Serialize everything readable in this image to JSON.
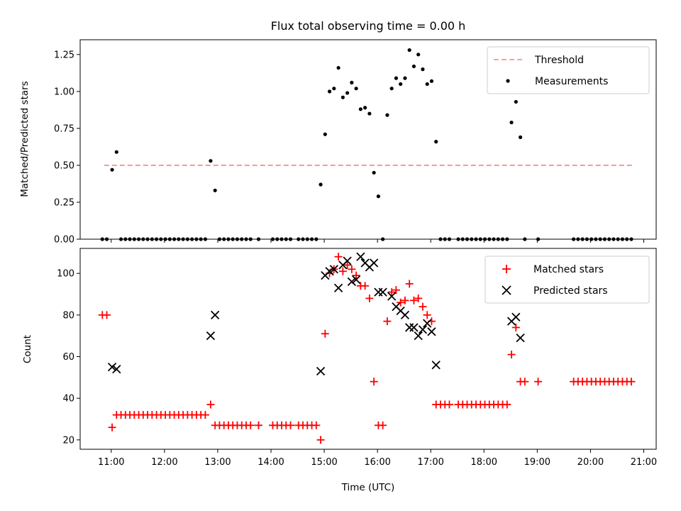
{
  "chart_data": [
    {
      "type": "scatter",
      "title": "Flux total observing time = 0.00 h",
      "xlabel": "",
      "ylabel": "Matched/Predicted stars",
      "xlim": [
        "10:25",
        "21:14"
      ],
      "ylim": [
        0,
        1.35
      ],
      "yticks": [
        "0.00",
        "0.25",
        "0.50",
        "0.75",
        "1.00",
        "1.25"
      ],
      "legend_position": "top-right",
      "threshold": {
        "name": "Threshold",
        "value": 0.5,
        "x_start": "10:52",
        "x_end": "20:47",
        "color": "#ff7f7f",
        "style": "dashed"
      },
      "series": [
        {
          "name": "Measurements",
          "color": "#000000",
          "marker": "dot",
          "points": [
            [
              "10:50",
              0
            ],
            [
              "10:55",
              0
            ],
            [
              "11:01",
              0.47
            ],
            [
              "11:06",
              0.59
            ],
            [
              "11:11",
              0
            ],
            [
              "11:16",
              0
            ],
            [
              "11:21",
              0
            ],
            [
              "11:26",
              0
            ],
            [
              "11:31",
              0
            ],
            [
              "11:36",
              0
            ],
            [
              "11:41",
              0
            ],
            [
              "11:46",
              0
            ],
            [
              "11:51",
              0
            ],
            [
              "11:56",
              0
            ],
            [
              "12:01",
              0
            ],
            [
              "12:06",
              0
            ],
            [
              "12:11",
              0
            ],
            [
              "12:16",
              0
            ],
            [
              "12:21",
              0
            ],
            [
              "12:26",
              0
            ],
            [
              "12:31",
              0
            ],
            [
              "12:36",
              0
            ],
            [
              "12:41",
              0
            ],
            [
              "12:46",
              0
            ],
            [
              "12:52",
              0.53
            ],
            [
              "12:57",
              0.33
            ],
            [
              "13:02",
              0
            ],
            [
              "13:07",
              0
            ],
            [
              "13:12",
              0
            ],
            [
              "13:17",
              0
            ],
            [
              "13:22",
              0
            ],
            [
              "13:27",
              0
            ],
            [
              "13:32",
              0
            ],
            [
              "13:37",
              0
            ],
            [
              "13:46",
              0
            ],
            [
              "14:02",
              0
            ],
            [
              "14:07",
              0
            ],
            [
              "14:12",
              0
            ],
            [
              "14:17",
              0
            ],
            [
              "14:22",
              0
            ],
            [
              "14:31",
              0
            ],
            [
              "14:36",
              0
            ],
            [
              "14:41",
              0
            ],
            [
              "14:46",
              0
            ],
            [
              "14:51",
              0
            ],
            [
              "14:56",
              0.37
            ],
            [
              "15:01",
              0.71
            ],
            [
              "15:06",
              1.0
            ],
            [
              "15:11",
              1.02
            ],
            [
              "15:16",
              1.16
            ],
            [
              "15:21",
              0.96
            ],
            [
              "15:26",
              0.99
            ],
            [
              "15:31",
              1.06
            ],
            [
              "15:36",
              1.02
            ],
            [
              "15:41",
              0.88
            ],
            [
              "15:46",
              0.89
            ],
            [
              "15:51",
              0.85
            ],
            [
              "15:56",
              0.45
            ],
            [
              "16:01",
              0.29
            ],
            [
              "16:06",
              0
            ],
            [
              "16:11",
              0.84
            ],
            [
              "16:16",
              1.02
            ],
            [
              "16:21",
              1.09
            ],
            [
              "16:26",
              1.05
            ],
            [
              "16:31",
              1.09
            ],
            [
              "16:36",
              1.28
            ],
            [
              "16:41",
              1.17
            ],
            [
              "16:46",
              1.25
            ],
            [
              "16:51",
              1.15
            ],
            [
              "16:56",
              1.05
            ],
            [
              "17:01",
              1.07
            ],
            [
              "17:06",
              0.66
            ],
            [
              "17:11",
              0
            ],
            [
              "17:16",
              0
            ],
            [
              "17:21",
              0
            ],
            [
              "17:31",
              0
            ],
            [
              "17:36",
              0
            ],
            [
              "17:41",
              0
            ],
            [
              "17:46",
              0
            ],
            [
              "17:51",
              0
            ],
            [
              "17:56",
              0
            ],
            [
              "18:01",
              0
            ],
            [
              "18:06",
              0
            ],
            [
              "18:11",
              0
            ],
            [
              "18:16",
              0
            ],
            [
              "18:21",
              0
            ],
            [
              "18:26",
              0
            ],
            [
              "18:31",
              0.79
            ],
            [
              "18:36",
              0.93
            ],
            [
              "18:41",
              0.69
            ],
            [
              "18:46",
              0
            ],
            [
              "19:01",
              0
            ],
            [
              "19:41",
              0
            ],
            [
              "19:46",
              0
            ],
            [
              "19:51",
              0
            ],
            [
              "19:56",
              0
            ],
            [
              "20:01",
              0
            ],
            [
              "20:06",
              0
            ],
            [
              "20:11",
              0
            ],
            [
              "20:16",
              0
            ],
            [
              "20:21",
              0
            ],
            [
              "20:26",
              0
            ],
            [
              "20:31",
              0
            ],
            [
              "20:36",
              0
            ],
            [
              "20:41",
              0
            ],
            [
              "20:46",
              0
            ]
          ]
        }
      ]
    },
    {
      "type": "scatter",
      "title": "",
      "xlabel": "Time (UTC)",
      "ylabel": "Count",
      "xlim": [
        "10:25",
        "21:14"
      ],
      "ylim": [
        15.5,
        112
      ],
      "yticks": [
        "20",
        "40",
        "60",
        "80",
        "100"
      ],
      "xticks": [
        "11:00",
        "12:00",
        "13:00",
        "14:00",
        "15:00",
        "16:00",
        "17:00",
        "18:00",
        "19:00",
        "20:00",
        "21:00"
      ],
      "legend_position": "top-right",
      "series": [
        {
          "name": "Matched stars",
          "color": "#ff0000",
          "marker": "plus",
          "points": [
            [
              "10:50",
              80
            ],
            [
              "10:55",
              80
            ],
            [
              "11:01",
              26
            ],
            [
              "11:06",
              32
            ],
            [
              "11:11",
              32
            ],
            [
              "11:16",
              32
            ],
            [
              "11:21",
              32
            ],
            [
              "11:26",
              32
            ],
            [
              "11:31",
              32
            ],
            [
              "11:36",
              32
            ],
            [
              "11:41",
              32
            ],
            [
              "11:46",
              32
            ],
            [
              "11:51",
              32
            ],
            [
              "11:56",
              32
            ],
            [
              "12:01",
              32
            ],
            [
              "12:06",
              32
            ],
            [
              "12:11",
              32
            ],
            [
              "12:16",
              32
            ],
            [
              "12:21",
              32
            ],
            [
              "12:26",
              32
            ],
            [
              "12:31",
              32
            ],
            [
              "12:36",
              32
            ],
            [
              "12:41",
              32
            ],
            [
              "12:46",
              32
            ],
            [
              "12:52",
              37
            ],
            [
              "12:57",
              27
            ],
            [
              "13:02",
              27
            ],
            [
              "13:07",
              27
            ],
            [
              "13:12",
              27
            ],
            [
              "13:17",
              27
            ],
            [
              "13:22",
              27
            ],
            [
              "13:27",
              27
            ],
            [
              "13:32",
              27
            ],
            [
              "13:37",
              27
            ],
            [
              "13:46",
              27
            ],
            [
              "14:02",
              27
            ],
            [
              "14:07",
              27
            ],
            [
              "14:12",
              27
            ],
            [
              "14:17",
              27
            ],
            [
              "14:22",
              27
            ],
            [
              "14:31",
              27
            ],
            [
              "14:36",
              27
            ],
            [
              "14:41",
              27
            ],
            [
              "14:46",
              27
            ],
            [
              "14:51",
              27
            ],
            [
              "14:56",
              20
            ],
            [
              "15:01",
              71
            ],
            [
              "15:06",
              100
            ],
            [
              "15:11",
              102
            ],
            [
              "15:16",
              108
            ],
            [
              "15:21",
              101
            ],
            [
              "15:26",
              104
            ],
            [
              "15:31",
              102
            ],
            [
              "15:36",
              99
            ],
            [
              "15:41",
              94
            ],
            [
              "15:46",
              94
            ],
            [
              "15:51",
              88
            ],
            [
              "15:56",
              48
            ],
            [
              "16:01",
              27
            ],
            [
              "16:06",
              27
            ],
            [
              "16:11",
              77
            ],
            [
              "16:16",
              91
            ],
            [
              "16:21",
              92
            ],
            [
              "16:26",
              86
            ],
            [
              "16:31",
              87
            ],
            [
              "16:36",
              95
            ],
            [
              "16:41",
              87
            ],
            [
              "16:46",
              88
            ],
            [
              "16:51",
              84
            ],
            [
              "16:56",
              80
            ],
            [
              "17:01",
              77
            ],
            [
              "17:06",
              37
            ],
            [
              "17:11",
              37
            ],
            [
              "17:16",
              37
            ],
            [
              "17:21",
              37
            ],
            [
              "17:31",
              37
            ],
            [
              "17:36",
              37
            ],
            [
              "17:41",
              37
            ],
            [
              "17:46",
              37
            ],
            [
              "17:51",
              37
            ],
            [
              "17:56",
              37
            ],
            [
              "18:01",
              37
            ],
            [
              "18:06",
              37
            ],
            [
              "18:11",
              37
            ],
            [
              "18:16",
              37
            ],
            [
              "18:21",
              37
            ],
            [
              "18:26",
              37
            ],
            [
              "18:31",
              61
            ],
            [
              "18:36",
              74
            ],
            [
              "18:41",
              48
            ],
            [
              "18:46",
              48
            ],
            [
              "19:01",
              48
            ],
            [
              "19:41",
              48
            ],
            [
              "19:46",
              48
            ],
            [
              "19:51",
              48
            ],
            [
              "19:56",
              48
            ],
            [
              "20:01",
              48
            ],
            [
              "20:06",
              48
            ],
            [
              "20:11",
              48
            ],
            [
              "20:16",
              48
            ],
            [
              "20:21",
              48
            ],
            [
              "20:26",
              48
            ],
            [
              "20:31",
              48
            ],
            [
              "20:36",
              48
            ],
            [
              "20:41",
              48
            ],
            [
              "20:46",
              48
            ]
          ]
        },
        {
          "name": "Predicted stars",
          "color": "#000000",
          "marker": "x",
          "points": [
            [
              "11:01",
              55
            ],
            [
              "11:06",
              54
            ],
            [
              "12:52",
              70
            ],
            [
              "12:57",
              80
            ],
            [
              "14:56",
              53
            ],
            [
              "15:01",
              99
            ],
            [
              "15:06",
              101
            ],
            [
              "15:11",
              102
            ],
            [
              "15:16",
              93
            ],
            [
              "15:21",
              104
            ],
            [
              "15:26",
              106
            ],
            [
              "15:31",
              96
            ],
            [
              "15:36",
              97
            ],
            [
              "15:41",
              108
            ],
            [
              "15:46",
              105
            ],
            [
              "15:51",
              103
            ],
            [
              "15:56",
              105
            ],
            [
              "16:01",
              91
            ],
            [
              "16:06",
              91
            ],
            [
              "16:16",
              89
            ],
            [
              "16:21",
              84
            ],
            [
              "16:26",
              82
            ],
            [
              "16:31",
              80
            ],
            [
              "16:36",
              74
            ],
            [
              "16:41",
              74
            ],
            [
              "16:46",
              70
            ],
            [
              "16:51",
              73
            ],
            [
              "16:56",
              76
            ],
            [
              "17:01",
              72
            ],
            [
              "17:06",
              56
            ],
            [
              "18:31",
              77
            ],
            [
              "18:36",
              79
            ],
            [
              "18:41",
              69
            ]
          ]
        }
      ]
    }
  ]
}
